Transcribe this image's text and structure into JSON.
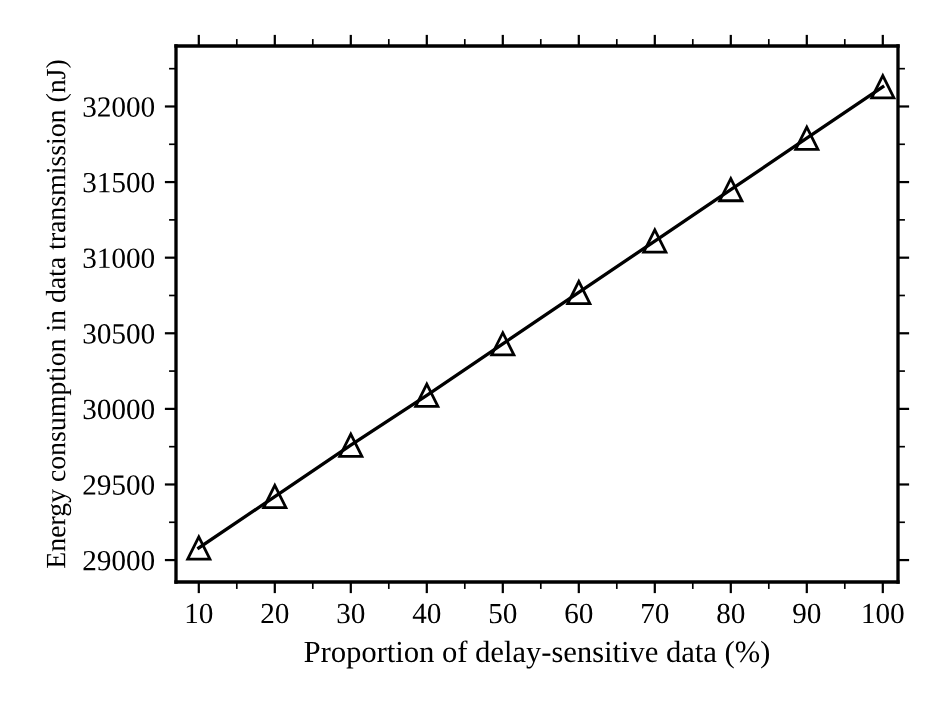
{
  "chart_data": {
    "type": "line",
    "xlabel": "Proportion of delay-sensitive data (%)",
    "ylabel": "Energy consumption in data transmission (nJ)",
    "x": [
      10,
      20,
      30,
      40,
      50,
      60,
      70,
      80,
      90,
      100
    ],
    "series": [
      {
        "color": "#000000",
        "values": [
          29080,
          29420,
          29760,
          30090,
          30430,
          30770,
          31110,
          31450,
          31790,
          32130
        ]
      }
    ],
    "xlim": [
      7,
      102
    ],
    "ylim": [
      28855,
      32400
    ],
    "xticks": [
      10,
      20,
      30,
      40,
      50,
      60,
      70,
      80,
      90,
      100
    ],
    "yticks": [
      29000,
      29500,
      30000,
      30500,
      31000,
      31500,
      32000
    ],
    "marker": "triangle",
    "line_style": "solid",
    "grid": false
  }
}
